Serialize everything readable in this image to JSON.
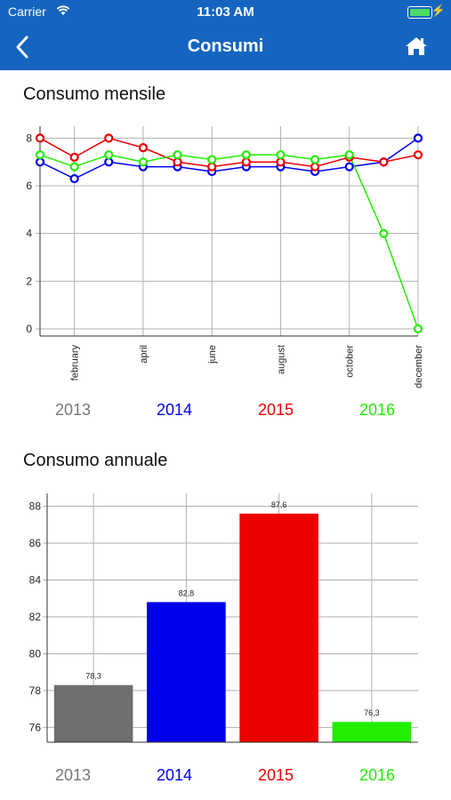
{
  "status_bar": {
    "carrier": "Carrier",
    "time": "11:03 AM"
  },
  "nav": {
    "title": "Consumi"
  },
  "colors": {
    "nav_bg": "#1565c0",
    "2013": "#6e6e6e",
    "2014": "#0000ee",
    "2015": "#ee0000",
    "2016": "#22ee00"
  },
  "sections": {
    "monthly_title": "Consumo mensile",
    "annual_title": "Consumo annuale"
  },
  "legend": [
    "2013",
    "2014",
    "2015",
    "2016"
  ],
  "chart_data": [
    {
      "type": "line",
      "title": "Consumo mensile",
      "x": [
        1,
        2,
        3,
        4,
        5,
        6,
        7,
        8,
        9,
        10,
        11,
        12
      ],
      "x_tick_labels": [
        "february",
        "april",
        "june",
        "august",
        "october",
        "december"
      ],
      "x_tick_positions": [
        2,
        4,
        6,
        8,
        10,
        12
      ],
      "ylim": [
        -0.3,
        8.5
      ],
      "y_ticks": [
        0,
        2,
        4,
        6,
        8
      ],
      "grid": true,
      "series": [
        {
          "name": "2014",
          "color": "#0000ee",
          "values": [
            7.0,
            6.3,
            7.0,
            6.8,
            6.8,
            6.6,
            6.8,
            6.8,
            6.6,
            6.8,
            7.0,
            8.0
          ]
        },
        {
          "name": "2015",
          "color": "#ee0000",
          "values": [
            8.0,
            7.2,
            8.0,
            7.6,
            7.0,
            6.8,
            7.0,
            7.0,
            6.8,
            7.2,
            7.0,
            7.3
          ]
        },
        {
          "name": "2016",
          "color": "#22ee00",
          "values": [
            7.3,
            6.8,
            7.3,
            7.0,
            7.3,
            7.1,
            7.3,
            7.3,
            7.1,
            7.3,
            4.0,
            0.0
          ]
        }
      ]
    },
    {
      "type": "bar",
      "title": "Consumo annuale",
      "categories": [
        "2013",
        "2014",
        "2015",
        "2016"
      ],
      "values": [
        78.3,
        82.8,
        87.6,
        76.3
      ],
      "value_labels": [
        "78,3",
        "82,8",
        "87,6",
        "76,3"
      ],
      "colors": [
        "#6e6e6e",
        "#0000ee",
        "#ee0000",
        "#22ee00"
      ],
      "ylim": [
        75.2,
        88.7
      ],
      "y_ticks": [
        76,
        78,
        80,
        82,
        84,
        86,
        88
      ],
      "grid": true
    }
  ]
}
